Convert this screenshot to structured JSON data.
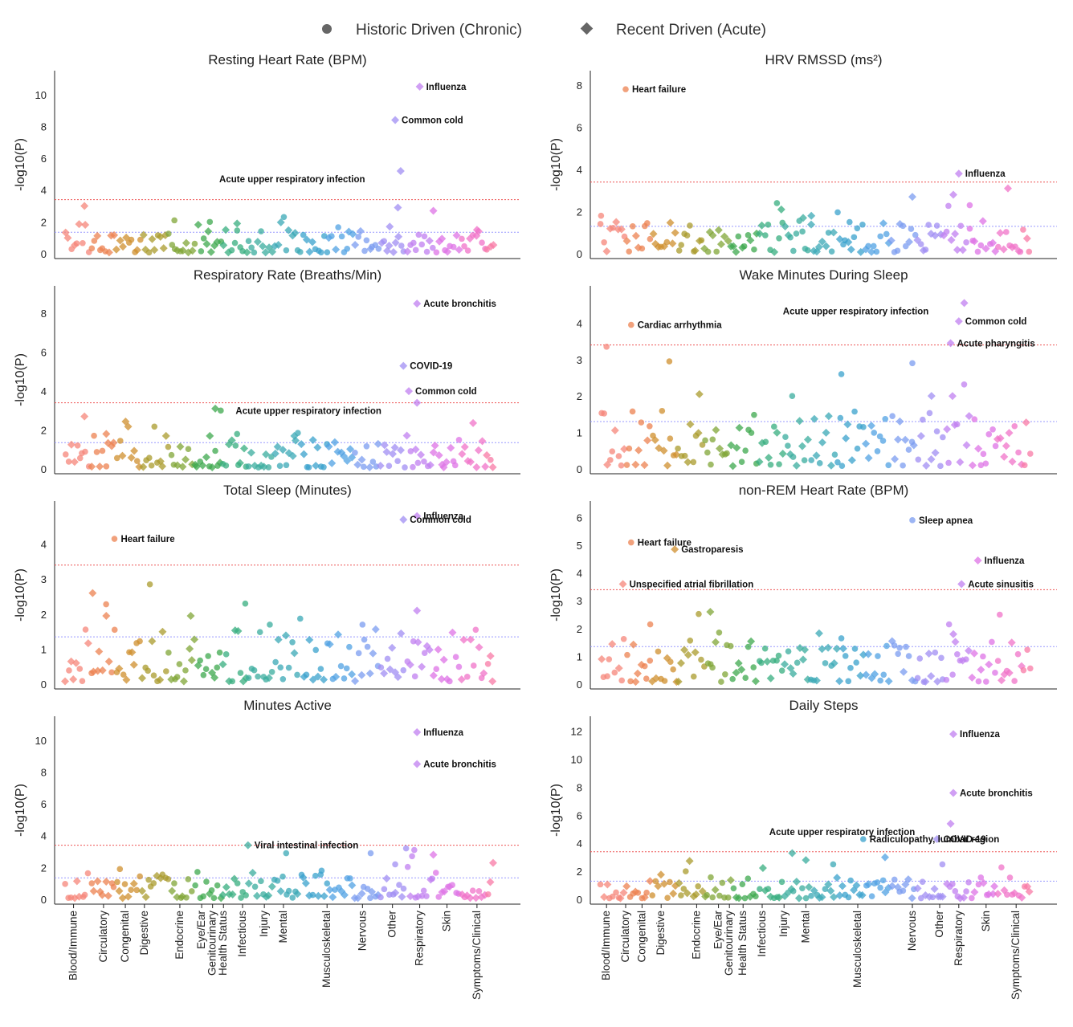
{
  "legend": {
    "items": [
      {
        "label": "Historic Driven (Chronic)",
        "marker": "circle",
        "color": "#666666"
      },
      {
        "label": "Recent Driven (Acute)",
        "marker": "diamond",
        "color": "#666666"
      }
    ]
  },
  "category_colors": [
    "#f5857a",
    "#ec8250",
    "#cf8f2e",
    "#a99b2c",
    "#80a637",
    "#3ea84e",
    "#37ae7f",
    "#3aac9d",
    "#3aa8b5",
    "#3aa2cc",
    "#50a1e3",
    "#7b9cf0",
    "#a08df3",
    "#c07ff0",
    "#de73e6",
    "#f073c8",
    "#f87aa6"
  ],
  "chart_data": [
    {
      "type": "scatter",
      "title": "Resting Heart Rate (BPM)",
      "ylabel": "-log10(P)",
      "xlabel": "",
      "ylim": [
        0,
        11
      ],
      "yticks": [
        0,
        2,
        4,
        6,
        8,
        10
      ],
      "thresholds": {
        "red": 3.4,
        "blue": 1.35
      },
      "grid": false,
      "annotations": [
        {
          "text": "Influenza",
          "x": 13.1,
          "y": 10.5
        },
        {
          "text": "Common cold",
          "x": 12.2,
          "y": 8.4
        },
        {
          "text": "Acute upper respiratory infection",
          "x": 12.4,
          "y": 5.2
        }
      ],
      "highlights": [
        {
          "x": 13.1,
          "y": 10.5,
          "acute": true
        },
        {
          "x": 12.2,
          "y": 8.4,
          "acute": true
        },
        {
          "x": 12.4,
          "y": 5.2,
          "acute": true
        },
        {
          "x": 0.8,
          "y": 3.0,
          "acute": true
        },
        {
          "x": 12.3,
          "y": 2.9,
          "acute": true
        },
        {
          "x": 13.6,
          "y": 2.7,
          "acute": true
        },
        {
          "x": 4.1,
          "y": 2.1,
          "acute": false
        },
        {
          "x": 5.4,
          "y": 2.0,
          "acute": false
        },
        {
          "x": 6.4,
          "y": 1.9,
          "acute": true
        },
        {
          "x": 12.0,
          "y": 1.7,
          "acute": true
        },
        {
          "x": 15.2,
          "y": 1.5,
          "acute": true
        }
      ],
      "seed": 11,
      "base": 0.45
    },
    {
      "type": "scatter",
      "title": "HRV RMSSD (ms²)",
      "ylabel": "-log10(P)",
      "xlabel": "",
      "ylim": [
        0,
        8.3
      ],
      "yticks": [
        0,
        2,
        4,
        6,
        8
      ],
      "thresholds": {
        "red": 3.4,
        "blue": 1.3
      },
      "grid": false,
      "annotations": [
        {
          "text": "Heart failure",
          "x": 1.0,
          "y": 7.8
        },
        {
          "text": "Influenza",
          "x": 13.2,
          "y": 3.8
        }
      ],
      "highlights": [
        {
          "x": 1.0,
          "y": 7.8,
          "acute": false
        },
        {
          "x": 13.2,
          "y": 3.8,
          "acute": true
        },
        {
          "x": 15.0,
          "y": 3.1,
          "acute": true
        },
        {
          "x": 13.0,
          "y": 2.8,
          "acute": true
        },
        {
          "x": 11.5,
          "y": 2.7,
          "acute": true
        },
        {
          "x": 13.6,
          "y": 2.3,
          "acute": false
        },
        {
          "x": 6.7,
          "y": 2.1,
          "acute": true
        },
        {
          "x": 7.8,
          "y": 1.8,
          "acute": true
        },
        {
          "x": 0.1,
          "y": 1.8,
          "acute": false
        },
        {
          "x": 7.5,
          "y": 1.7,
          "acute": true
        },
        {
          "x": 9.2,
          "y": 1.5,
          "acute": false
        }
      ],
      "seed": 23,
      "base": 0.5
    },
    {
      "type": "scatter",
      "title": "Respiratory Rate (Breaths/Min)",
      "ylabel": "-log10(P)",
      "xlabel": "",
      "ylim": [
        0,
        9.0
      ],
      "yticks": [
        0,
        2,
        4,
        6,
        8
      ],
      "thresholds": {
        "red": 3.4,
        "blue": 1.35
      },
      "grid": false,
      "annotations": [
        {
          "text": "Acute bronchitis",
          "x": 13.0,
          "y": 8.5
        },
        {
          "text": "COVID-19",
          "x": 12.5,
          "y": 5.3
        },
        {
          "text": "Common cold",
          "x": 12.7,
          "y": 4.0
        },
        {
          "text": "Acute upper respiratory infection",
          "x": 13.0,
          "y": 3.4
        }
      ],
      "highlights": [
        {
          "x": 13.0,
          "y": 8.5,
          "acute": true
        },
        {
          "x": 12.5,
          "y": 5.3,
          "acute": true
        },
        {
          "x": 12.7,
          "y": 4.0,
          "acute": true
        },
        {
          "x": 13.0,
          "y": 3.4,
          "acute": true
        },
        {
          "x": 5.6,
          "y": 3.1,
          "acute": true
        },
        {
          "x": 5.8,
          "y": 3.0,
          "acute": false
        },
        {
          "x": 0.8,
          "y": 2.7,
          "acute": true
        },
        {
          "x": 1.6,
          "y": 1.8,
          "acute": true
        },
        {
          "x": 6.4,
          "y": 1.8,
          "acute": false
        },
        {
          "x": 5.4,
          "y": 1.7,
          "acute": true
        },
        {
          "x": 8.5,
          "y": 1.7,
          "acute": true
        }
      ],
      "seed": 37,
      "base": 0.5
    },
    {
      "type": "scatter",
      "title": "Wake Minutes During Sleep",
      "ylabel": "",
      "xlabel": "",
      "ylim": [
        0,
        4.8
      ],
      "yticks": [
        0,
        1,
        2,
        3,
        4
      ],
      "thresholds": {
        "red": 3.4,
        "blue": 1.3
      },
      "grid": false,
      "annotations": [
        {
          "text": "Acute upper respiratory infection",
          "x": 13.4,
          "y": 4.55
        },
        {
          "text": "Common cold",
          "x": 13.2,
          "y": 4.05
        },
        {
          "text": "Cardiac arrhythmia",
          "x": 1.2,
          "y": 3.95
        },
        {
          "text": "Acute pharyngitis",
          "x": 12.9,
          "y": 3.45
        }
      ],
      "highlights": [
        {
          "x": 13.4,
          "y": 4.55,
          "acute": true
        },
        {
          "x": 13.2,
          "y": 4.05,
          "acute": true
        },
        {
          "x": 1.2,
          "y": 3.95,
          "acute": false
        },
        {
          "x": 12.9,
          "y": 3.45,
          "acute": true
        },
        {
          "x": 0.3,
          "y": 3.35,
          "acute": false
        },
        {
          "x": 2.6,
          "y": 2.95,
          "acute": false
        },
        {
          "x": 11.5,
          "y": 2.9,
          "acute": false
        },
        {
          "x": 8.9,
          "y": 2.6,
          "acute": false
        },
        {
          "x": 3.7,
          "y": 2.05,
          "acute": true
        },
        {
          "x": 12.2,
          "y": 2.0,
          "acute": true
        },
        {
          "x": 7.1,
          "y": 2.0,
          "acute": false
        }
      ],
      "seed": 41,
      "base": 0.55
    },
    {
      "type": "scatter",
      "title": "Total Sleep (Minutes)",
      "ylabel": "-log10(P)",
      "xlabel": "",
      "ylim": [
        0,
        5.0
      ],
      "yticks": [
        0,
        1,
        2,
        3,
        4
      ],
      "thresholds": {
        "red": 3.4,
        "blue": 1.35
      },
      "grid": false,
      "annotations": [
        {
          "text": "Influenza",
          "x": 13.0,
          "y": 4.8
        },
        {
          "text": "Common cold",
          "x": 12.5,
          "y": 4.7
        },
        {
          "text": "Heart failure",
          "x": 1.9,
          "y": 4.15
        }
      ],
      "highlights": [
        {
          "x": 13.0,
          "y": 4.8,
          "acute": true
        },
        {
          "x": 12.5,
          "y": 4.7,
          "acute": true
        },
        {
          "x": 1.9,
          "y": 4.15,
          "acute": false
        },
        {
          "x": 3.2,
          "y": 2.85,
          "acute": false
        },
        {
          "x": 1.1,
          "y": 2.6,
          "acute": true
        },
        {
          "x": 6.7,
          "y": 2.3,
          "acute": false
        },
        {
          "x": 13.0,
          "y": 2.1,
          "acute": true
        },
        {
          "x": 4.7,
          "y": 1.95,
          "acute": true
        },
        {
          "x": 1.6,
          "y": 1.95,
          "acute": true
        },
        {
          "x": 11.0,
          "y": 1.7,
          "acute": false
        },
        {
          "x": 7.6,
          "y": 1.7,
          "acute": false
        }
      ],
      "seed": 53,
      "base": 0.55
    },
    {
      "type": "scatter",
      "title": "non-REM Heart Rate (BPM)",
      "ylabel": "-log10(P)",
      "xlabel": "",
      "ylim": [
        0,
        6.3
      ],
      "yticks": [
        0,
        1,
        2,
        3,
        4,
        5,
        6
      ],
      "thresholds": {
        "red": 3.4,
        "blue": 1.35
      },
      "grid": false,
      "annotations": [
        {
          "text": "Sleep apnea",
          "x": 11.5,
          "y": 5.9
        },
        {
          "text": "Heart failure",
          "x": 1.2,
          "y": 5.1
        },
        {
          "text": "Gastroparesis",
          "x": 2.8,
          "y": 4.85
        },
        {
          "text": "Influenza",
          "x": 13.9,
          "y": 4.45
        },
        {
          "text": "Unspecified atrial fibrillation",
          "x": 0.9,
          "y": 3.6
        },
        {
          "text": "Acute sinusitis",
          "x": 13.3,
          "y": 3.6
        }
      ],
      "highlights": [
        {
          "x": 11.5,
          "y": 5.9,
          "acute": false
        },
        {
          "x": 1.2,
          "y": 5.1,
          "acute": false
        },
        {
          "x": 2.8,
          "y": 4.85,
          "acute": true
        },
        {
          "x": 13.9,
          "y": 4.45,
          "acute": true
        },
        {
          "x": 0.9,
          "y": 3.6,
          "acute": true
        },
        {
          "x": 13.3,
          "y": 3.6,
          "acute": true
        },
        {
          "x": 4.1,
          "y": 2.6,
          "acute": true
        },
        {
          "x": 14.7,
          "y": 2.5,
          "acute": false
        },
        {
          "x": 1.9,
          "y": 2.15,
          "acute": false
        },
        {
          "x": 13.0,
          "y": 1.8,
          "acute": true
        },
        {
          "x": 8.9,
          "y": 1.65,
          "acute": false
        }
      ],
      "seed": 67,
      "base": 0.5
    },
    {
      "type": "scatter",
      "title": "Minutes Active",
      "ylabel": "-log10(P)",
      "xlabel": "",
      "ylim": [
        0,
        11
      ],
      "yticks": [
        0,
        2,
        4,
        6,
        8,
        10
      ],
      "thresholds": {
        "red": 3.4,
        "blue": 1.35
      },
      "grid": false,
      "annotations": [
        {
          "text": "Influenza",
          "x": 13.0,
          "y": 10.5
        },
        {
          "text": "Acute bronchitis",
          "x": 13.0,
          "y": 8.5
        },
        {
          "text": "Viral intestinal infection",
          "x": 6.8,
          "y": 3.4
        }
      ],
      "highlights": [
        {
          "x": 13.0,
          "y": 10.5,
          "acute": true
        },
        {
          "x": 13.0,
          "y": 8.5,
          "acute": true
        },
        {
          "x": 6.8,
          "y": 3.4,
          "acute": true
        },
        {
          "x": 12.6,
          "y": 3.2,
          "acute": false
        },
        {
          "x": 12.9,
          "y": 3.1,
          "acute": false
        },
        {
          "x": 11.3,
          "y": 2.9,
          "acute": false
        },
        {
          "x": 8.2,
          "y": 2.9,
          "acute": false
        },
        {
          "x": 13.6,
          "y": 2.8,
          "acute": true
        },
        {
          "x": 12.2,
          "y": 2.2,
          "acute": false
        },
        {
          "x": 2.1,
          "y": 1.9,
          "acute": false
        },
        {
          "x": 9.5,
          "y": 1.8,
          "acute": false
        }
      ],
      "seed": 79,
      "base": 0.55
    },
    {
      "type": "scatter",
      "title": "Daily Steps",
      "ylabel": "-log10(P)",
      "xlabel": "",
      "ylim": [
        0,
        12.5
      ],
      "yticks": [
        0,
        2,
        4,
        6,
        8,
        10,
        12
      ],
      "thresholds": {
        "red": 3.4,
        "blue": 1.3
      },
      "grid": false,
      "annotations": [
        {
          "text": "Influenza",
          "x": 13.0,
          "y": 11.8
        },
        {
          "text": "Acute bronchitis",
          "x": 13.0,
          "y": 7.6
        },
        {
          "text": "Acute upper respiratory infection",
          "x": 12.9,
          "y": 5.4
        },
        {
          "text": "COVID-19",
          "x": 12.4,
          "y": 4.3
        },
        {
          "text": "Radiculopathy, lumbar region",
          "x": 9.7,
          "y": 4.3
        }
      ],
      "highlights": [
        {
          "x": 13.0,
          "y": 11.8,
          "acute": true
        },
        {
          "x": 13.0,
          "y": 7.6,
          "acute": true
        },
        {
          "x": 12.9,
          "y": 5.4,
          "acute": true
        },
        {
          "x": 12.4,
          "y": 4.3,
          "acute": true
        },
        {
          "x": 9.7,
          "y": 4.3,
          "acute": false
        },
        {
          "x": 7.1,
          "y": 3.3,
          "acute": true
        },
        {
          "x": 10.5,
          "y": 3.0,
          "acute": true
        },
        {
          "x": 7.6,
          "y": 2.8,
          "acute": true
        },
        {
          "x": 8.6,
          "y": 2.5,
          "acute": false
        },
        {
          "x": 12.6,
          "y": 2.5,
          "acute": false
        },
        {
          "x": 3.2,
          "y": 2.0,
          "acute": false
        }
      ],
      "seed": 97,
      "base": 0.5
    }
  ],
  "categories_left": [
    {
      "label": "Blood/Immune",
      "x": 0.4
    },
    {
      "label": "Circulatory",
      "x": 1.5
    },
    {
      "label": "Congenital",
      "x": 2.3
    },
    {
      "label": "Digestive",
      "x": 3.0
    },
    {
      "label": "Endocrine",
      "x": 4.3
    },
    {
      "label": "Eye/Ear",
      "x": 5.1
    },
    {
      "label": "Genitourinary",
      "x": 5.5
    },
    {
      "label": "Health Status",
      "x": 5.9
    },
    {
      "label": "Infectious",
      "x": 6.6
    },
    {
      "label": "Injury",
      "x": 7.4
    },
    {
      "label": "Mental",
      "x": 8.1
    },
    {
      "label": "Musculoskeletal",
      "x": 9.7
    },
    {
      "label": "Nervous",
      "x": 11.0
    },
    {
      "label": "Other",
      "x": 12.1
    },
    {
      "label": "Respiratory",
      "x": 13.1
    },
    {
      "label": "Skin",
      "x": 14.1
    },
    {
      "label": "Symptoms/Clinical",
      "x": 15.2
    }
  ],
  "categories_right": [
    {
      "label": "Blood/Immune",
      "x": 0.3
    },
    {
      "label": "Circulatory",
      "x": 1.0
    },
    {
      "label": "Congenital",
      "x": 1.6
    },
    {
      "label": "Digestive",
      "x": 2.3
    },
    {
      "label": "Endocrine",
      "x": 3.6
    },
    {
      "label": "Eye/Ear",
      "x": 4.4
    },
    {
      "label": "Genitourinary",
      "x": 4.8
    },
    {
      "label": "Health Status",
      "x": 5.3
    },
    {
      "label": "Infectious",
      "x": 6.0
    },
    {
      "label": "Injury",
      "x": 6.8
    },
    {
      "label": "Mental",
      "x": 7.6
    },
    {
      "label": "Musculoskeletal",
      "x": 9.5
    },
    {
      "label": "Nervous",
      "x": 11.5
    },
    {
      "label": "Other",
      "x": 12.5
    },
    {
      "label": "Respiratory",
      "x": 13.2
    },
    {
      "label": "Skin",
      "x": 14.2
    },
    {
      "label": "Symptoms/Clinical",
      "x": 15.3
    }
  ]
}
